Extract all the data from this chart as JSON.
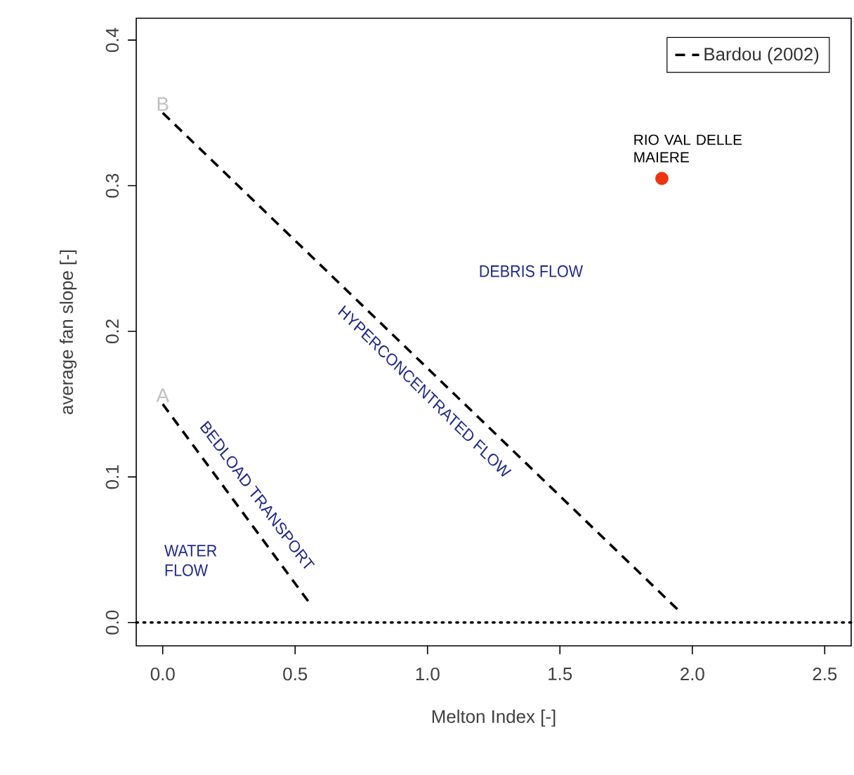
{
  "chart_data": {
    "type": "line",
    "xlabel": "Melton Index [-]",
    "ylabel": "average fan slope [-]",
    "xlim": [
      -0.1,
      2.6
    ],
    "ylim": [
      -0.016,
      0.415
    ],
    "xticks": [
      {
        "value": 0,
        "label": "0.0"
      },
      0.5,
      {
        "value": 1,
        "label": "1.0"
      },
      1.5,
      {
        "value": 2,
        "label": "2.0"
      },
      2.5
    ],
    "yticks": [
      {
        "value": 0,
        "label": "0.0"
      },
      0.1,
      0.2,
      0.3,
      0.4
    ],
    "grid": false,
    "legend": "top right",
    "series": [
      {
        "name": "Bardou (2002)",
        "color": "#000000",
        "x": [
          0,
          1.95
        ],
        "values": [
          0.35,
          0.008
        ],
        "line_style": "dashed",
        "marker": "none"
      },
      {
        "color": "#000000",
        "x": [
          0,
          0.56
        ],
        "values": [
          0.15,
          0.012
        ],
        "line_style": "dashed",
        "marker": "none"
      },
      {
        "type": "scatter",
        "color": "#ee3311",
        "x": [
          1.885
        ],
        "values": [
          0.305
        ],
        "marker": "circle"
      }
    ],
    "ref_lines": [
      {
        "axis": "y",
        "value": 0,
        "line_style": "dotted",
        "color": "#000000"
      }
    ],
    "annotations": [
      "B",
      "A",
      {
        "text": "RIO VAL DELLE MAIERE",
        "x": 1.885,
        "y": 0.305
      },
      "DEBRIS FLOW",
      "HYPERCONCENTRATED FLOW",
      "BEDLOAD TRANSPORT",
      "WATER FLOW"
    ]
  }
}
